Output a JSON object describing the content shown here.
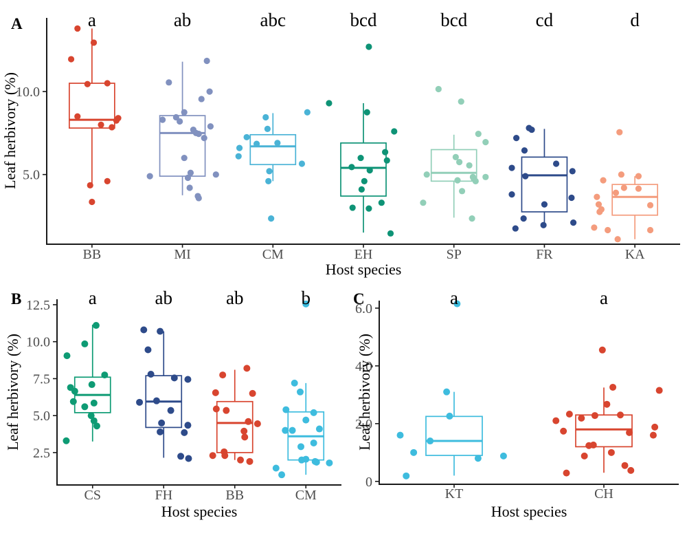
{
  "figure": {
    "background": "#ffffff",
    "axis_color": "#1a1a1a",
    "tick_text_color": "#4d4d4d",
    "title_text_color": "#000000"
  },
  "chart_data": [
    {
      "type": "boxplot",
      "panel": "A",
      "xlabel": "Host species",
      "ylabel": "Leaf herbivory (%)",
      "ylim": [
        0.8,
        14.44
      ],
      "yticks": [
        {
          "v": 10,
          "label": "10.0"
        },
        {
          "v": 5,
          "label": "5.0"
        }
      ],
      "groups": [
        {
          "name": "BB",
          "letter": "a",
          "color": "#D8452F",
          "box": {
            "low": 4.4,
            "q1": 7.8,
            "median": 8.3,
            "q3": 10.5,
            "high": 13.8
          },
          "points": [
            [
              -0.16,
              13.8
            ],
            [
              0.02,
              12.95
            ],
            [
              -0.23,
              11.95
            ],
            [
              -0.05,
              10.45
            ],
            [
              0.17,
              10.5
            ],
            [
              -0.16,
              8.5
            ],
            [
              0.29,
              8.4
            ],
            [
              0.27,
              8.25
            ],
            [
              0.1,
              8.0
            ],
            [
              0.22,
              7.85
            ],
            [
              0.17,
              4.6
            ],
            [
              -0.02,
              4.35
            ],
            [
              0.0,
              3.35
            ]
          ]
        },
        {
          "name": "MI",
          "letter": "ab",
          "color": "#8191BF",
          "box": {
            "low": 3.75,
            "q1": 4.9,
            "median": 7.5,
            "q3": 8.55,
            "high": 11.8
          },
          "points": [
            [
              0.27,
              11.85
            ],
            [
              -0.15,
              10.55
            ],
            [
              0.3,
              10.0
            ],
            [
              0.21,
              9.55
            ],
            [
              0.02,
              8.75
            ],
            [
              -0.22,
              8.3
            ],
            [
              -0.07,
              8.45
            ],
            [
              -0.03,
              8.2
            ],
            [
              0.31,
              7.9
            ],
            [
              0.12,
              7.7
            ],
            [
              0.15,
              7.5
            ],
            [
              0.18,
              7.45
            ],
            [
              0.24,
              7.2
            ],
            [
              0.02,
              6.0
            ],
            [
              0.09,
              5.1
            ],
            [
              0.37,
              5.0
            ],
            [
              -0.36,
              4.9
            ],
            [
              0.06,
              4.8
            ],
            [
              0.08,
              4.2
            ],
            [
              0.17,
              3.7
            ],
            [
              0.18,
              3.58
            ]
          ]
        },
        {
          "name": "CM",
          "letter": "abc",
          "color": "#4AB3D6",
          "box": {
            "low": 4.6,
            "q1": 5.6,
            "median": 6.7,
            "q3": 7.4,
            "high": 8.7
          },
          "points": [
            [
              0.38,
              8.75
            ],
            [
              -0.08,
              8.45
            ],
            [
              -0.06,
              7.75
            ],
            [
              -0.29,
              7.25
            ],
            [
              0.05,
              6.9
            ],
            [
              -0.18,
              6.85
            ],
            [
              -0.37,
              6.6
            ],
            [
              -0.38,
              6.1
            ],
            [
              0.32,
              5.65
            ],
            [
              -0.04,
              5.2
            ],
            [
              -0.05,
              4.6
            ],
            [
              -0.02,
              2.35
            ]
          ]
        },
        {
          "name": "EH",
          "letter": "bcd",
          "color": "#0E9376",
          "box": {
            "low": 1.5,
            "q1": 3.7,
            "median": 5.4,
            "q3": 6.9,
            "high": 9.3
          },
          "points": [
            [
              0.06,
              12.7
            ],
            [
              -0.38,
              9.3
            ],
            [
              0.04,
              8.75
            ],
            [
              0.34,
              7.6
            ],
            [
              0.24,
              6.35
            ],
            [
              -0.03,
              6.0
            ],
            [
              0.26,
              5.85
            ],
            [
              -0.13,
              5.45
            ],
            [
              0.07,
              5.25
            ],
            [
              0.01,
              4.6
            ],
            [
              -0.02,
              4.1
            ],
            [
              0.2,
              3.3
            ],
            [
              -0.12,
              3.0
            ],
            [
              0.06,
              2.95
            ],
            [
              0.3,
              1.45
            ]
          ]
        },
        {
          "name": "SP",
          "letter": "bcd",
          "color": "#92CFB8",
          "box": {
            "low": 2.4,
            "q1": 4.6,
            "median": 5.1,
            "q3": 6.5,
            "high": 7.4
          },
          "points": [
            [
              -0.17,
              10.15
            ],
            [
              0.08,
              9.4
            ],
            [
              0.27,
              7.45
            ],
            [
              0.35,
              6.95
            ],
            [
              0.02,
              6.05
            ],
            [
              0.06,
              5.75
            ],
            [
              0.17,
              5.55
            ],
            [
              -0.3,
              5.0
            ],
            [
              0.21,
              4.85
            ],
            [
              0.35,
              4.85
            ],
            [
              0.22,
              4.75
            ],
            [
              0.04,
              4.65
            ],
            [
              0.24,
              4.6
            ],
            [
              0.09,
              4.0
            ],
            [
              -0.34,
              3.3
            ],
            [
              0.2,
              2.35
            ]
          ]
        },
        {
          "name": "FR",
          "letter": "cd",
          "color": "#2E4B8A",
          "box": {
            "low": 1.9,
            "q1": 2.75,
            "median": 4.95,
            "q3": 6.05,
            "high": 7.75
          },
          "points": [
            [
              -0.17,
              7.8
            ],
            [
              -0.14,
              7.7
            ],
            [
              -0.31,
              7.2
            ],
            [
              -0.22,
              6.45
            ],
            [
              0.13,
              5.65
            ],
            [
              -0.36,
              5.4
            ],
            [
              0.31,
              5.2
            ],
            [
              -0.21,
              4.9
            ],
            [
              -0.36,
              3.8
            ],
            [
              0.3,
              3.6
            ],
            [
              0.0,
              3.2
            ],
            [
              -0.23,
              2.35
            ],
            [
              0.32,
              2.1
            ],
            [
              -0.01,
              1.95
            ],
            [
              -0.32,
              1.75
            ]
          ]
        },
        {
          "name": "KA",
          "letter": "d",
          "color": "#F49C7D",
          "box": {
            "low": 1.1,
            "q1": 2.55,
            "median": 3.65,
            "q3": 4.4,
            "high": 4.9
          },
          "points": [
            [
              -0.17,
              7.55
            ],
            [
              -0.15,
              5.0
            ],
            [
              0.04,
              4.9
            ],
            [
              -0.35,
              4.65
            ],
            [
              -0.12,
              4.2
            ],
            [
              0.04,
              4.15
            ],
            [
              -0.21,
              3.9
            ],
            [
              -0.42,
              3.65
            ],
            [
              -0.4,
              3.2
            ],
            [
              0.17,
              3.15
            ],
            [
              -0.37,
              2.9
            ],
            [
              -0.39,
              2.75
            ],
            [
              -0.45,
              1.8
            ],
            [
              -0.3,
              1.65
            ],
            [
              0.17,
              1.65
            ],
            [
              -0.19,
              1.1
            ]
          ]
        }
      ]
    },
    {
      "type": "boxplot",
      "panel": "B",
      "xlabel": "Host species",
      "ylabel": "Leaf herbivory (%)",
      "ylim": [
        0.31,
        12.87
      ],
      "yticks": [
        {
          "v": 12.5,
          "label": "12.5"
        },
        {
          "v": 10,
          "label": "10.0"
        },
        {
          "v": 7.5,
          "label": "7.5"
        },
        {
          "v": 5,
          "label": "5.0"
        },
        {
          "v": 2.5,
          "label": "2.5"
        }
      ],
      "groups": [
        {
          "name": "CS",
          "letter": "a",
          "color": "#0E9B74",
          "box": {
            "low": 3.25,
            "q1": 5.2,
            "median": 6.4,
            "q3": 7.6,
            "high": 11.15
          },
          "points": [
            [
              0.05,
              11.1
            ],
            [
              -0.11,
              9.85
            ],
            [
              -0.36,
              9.05
            ],
            [
              0.17,
              7.75
            ],
            [
              -0.01,
              7.1
            ],
            [
              -0.31,
              6.9
            ],
            [
              -0.25,
              6.65
            ],
            [
              -0.27,
              5.95
            ],
            [
              0.02,
              5.85
            ],
            [
              -0.11,
              5.6
            ],
            [
              -0.02,
              5.0
            ],
            [
              0.02,
              4.65
            ],
            [
              0.06,
              4.3
            ],
            [
              -0.37,
              3.3
            ]
          ]
        },
        {
          "name": "FH",
          "letter": "ab",
          "color": "#2E4B8A",
          "box": {
            "low": 2.15,
            "q1": 4.2,
            "median": 5.95,
            "q3": 7.7,
            "high": 10.7
          },
          "points": [
            [
              -0.28,
              10.8
            ],
            [
              -0.05,
              10.7
            ],
            [
              -0.22,
              9.45
            ],
            [
              -0.18,
              7.8
            ],
            [
              0.15,
              7.55
            ],
            [
              0.34,
              7.45
            ],
            [
              -0.1,
              6.0
            ],
            [
              -0.34,
              5.9
            ],
            [
              0.1,
              5.35
            ],
            [
              -0.03,
              4.5
            ],
            [
              0.34,
              4.35
            ],
            [
              -0.05,
              3.9
            ],
            [
              0.29,
              3.85
            ],
            [
              0.24,
              2.25
            ],
            [
              0.35,
              2.1
            ]
          ]
        },
        {
          "name": "BB",
          "letter": "ab",
          "color": "#D8452F",
          "box": {
            "low": 2.0,
            "q1": 2.5,
            "median": 4.5,
            "q3": 5.95,
            "high": 8.1
          },
          "points": [
            [
              0.17,
              8.2
            ],
            [
              -0.17,
              7.75
            ],
            [
              -0.27,
              6.55
            ],
            [
              0.25,
              6.5
            ],
            [
              -0.26,
              5.45
            ],
            [
              -0.12,
              5.35
            ],
            [
              0.19,
              4.6
            ],
            [
              0.32,
              4.45
            ],
            [
              0.13,
              3.95
            ],
            [
              0.14,
              3.55
            ],
            [
              -0.15,
              2.55
            ],
            [
              -0.14,
              2.3
            ],
            [
              -0.31,
              2.3
            ],
            [
              0.08,
              2.0
            ],
            [
              0.21,
              1.9
            ]
          ]
        },
        {
          "name": "CM",
          "letter": "b",
          "color": "#3EBCDE",
          "box": {
            "low": 1.0,
            "q1": 2.0,
            "median": 3.6,
            "q3": 5.25,
            "high": 7.2
          },
          "points": [
            [
              0.0,
              12.55
            ],
            [
              -0.16,
              7.2
            ],
            [
              -0.08,
              6.6
            ],
            [
              -0.28,
              5.4
            ],
            [
              0.11,
              5.2
            ],
            [
              0.0,
              4.7
            ],
            [
              0.19,
              4.1
            ],
            [
              -0.29,
              4.0
            ],
            [
              -0.19,
              4.0
            ],
            [
              0.11,
              3.15
            ],
            [
              -0.07,
              2.9
            ],
            [
              0.0,
              2.05
            ],
            [
              -0.06,
              2.0
            ],
            [
              0.13,
              1.9
            ],
            [
              0.15,
              1.85
            ],
            [
              0.33,
              1.8
            ],
            [
              -0.42,
              1.45
            ],
            [
              -0.34,
              1.0
            ]
          ]
        }
      ]
    },
    {
      "type": "boxplot",
      "panel": "C",
      "xlabel": "Host species",
      "ylabel": "Leaf herbivory (%)",
      "ylim": [
        -0.1,
        6.26
      ],
      "yticks": [
        {
          "v": 6,
          "label": "6.0"
        },
        {
          "v": 4,
          "label": "4.0"
        },
        {
          "v": 2,
          "label": "2.0"
        },
        {
          "v": 0,
          "label": "0"
        }
      ],
      "groups": [
        {
          "name": "KT",
          "letter": "a",
          "color": "#3EBCDE",
          "box": {
            "low": 0.2,
            "q1": 0.9,
            "median": 1.4,
            "q3": 2.25,
            "high": 3.1
          },
          "points": [
            [
              0.02,
              6.15
            ],
            [
              -0.05,
              3.1
            ],
            [
              -0.03,
              2.26
            ],
            [
              -0.36,
              1.6
            ],
            [
              -0.16,
              1.4
            ],
            [
              -0.27,
              1.0
            ],
            [
              0.33,
              0.88
            ],
            [
              0.16,
              0.8
            ],
            [
              -0.32,
              0.19
            ]
          ]
        },
        {
          "name": "CH",
          "letter": "a",
          "color": "#D8452F",
          "box": {
            "low": 0.3,
            "q1": 1.2,
            "median": 1.8,
            "q3": 2.3,
            "high": 3.25
          },
          "points": [
            [
              -0.01,
              4.55
            ],
            [
              0.06,
              3.26
            ],
            [
              0.37,
              3.15
            ],
            [
              0.02,
              2.67
            ],
            [
              -0.23,
              2.33
            ],
            [
              0.11,
              2.3
            ],
            [
              -0.06,
              2.28
            ],
            [
              -0.15,
              2.19
            ],
            [
              -0.32,
              2.1
            ],
            [
              0.34,
              1.88
            ],
            [
              -0.27,
              1.74
            ],
            [
              0.17,
              1.69
            ],
            [
              0.33,
              1.6
            ],
            [
              -0.07,
              1.26
            ],
            [
              -0.1,
              1.24
            ],
            [
              0.05,
              1.0
            ],
            [
              -0.13,
              0.88
            ],
            [
              0.14,
              0.55
            ],
            [
              0.18,
              0.38
            ],
            [
              -0.25,
              0.29
            ]
          ]
        }
      ]
    }
  ]
}
